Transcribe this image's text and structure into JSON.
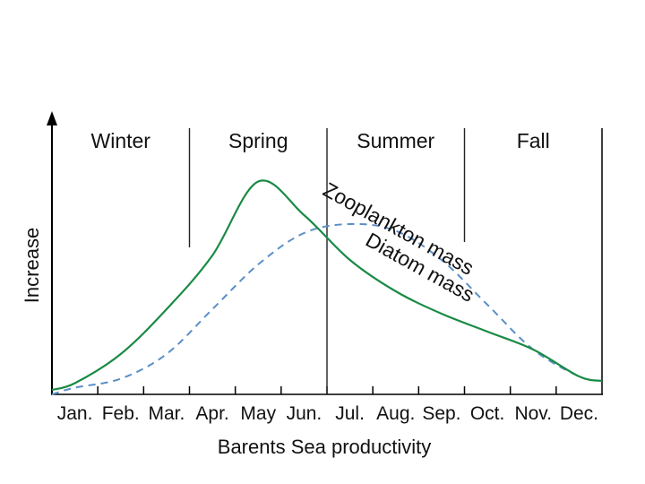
{
  "chart_data": {
    "type": "line",
    "title": "",
    "xlabel": "Barents Sea productivity",
    "ylabel": "Increase",
    "x": [
      "Jan.",
      "Feb.",
      "Mar.",
      "Apr.",
      "May",
      "Jun.",
      "Jul.",
      "Aug.",
      "Sep.",
      "Oct.",
      "Nov.",
      "Dec."
    ],
    "seasons": [
      "Winter",
      "Spring",
      "Summer",
      "Fall"
    ],
    "series": [
      {
        "name": "Diatom mass",
        "style": "solid",
        "color": "#1a8a45",
        "values": [
          0.05,
          0.18,
          0.38,
          0.62,
          0.95,
          0.8,
          0.6,
          0.46,
          0.36,
          0.28,
          0.2,
          0.08
        ]
      },
      {
        "name": "Zooplankton mass",
        "style": "dashed",
        "color": "#5a8fc7",
        "values": [
          0.03,
          0.07,
          0.18,
          0.38,
          0.58,
          0.72,
          0.76,
          0.73,
          0.6,
          0.4,
          0.2,
          0.08
        ]
      }
    ]
  }
}
